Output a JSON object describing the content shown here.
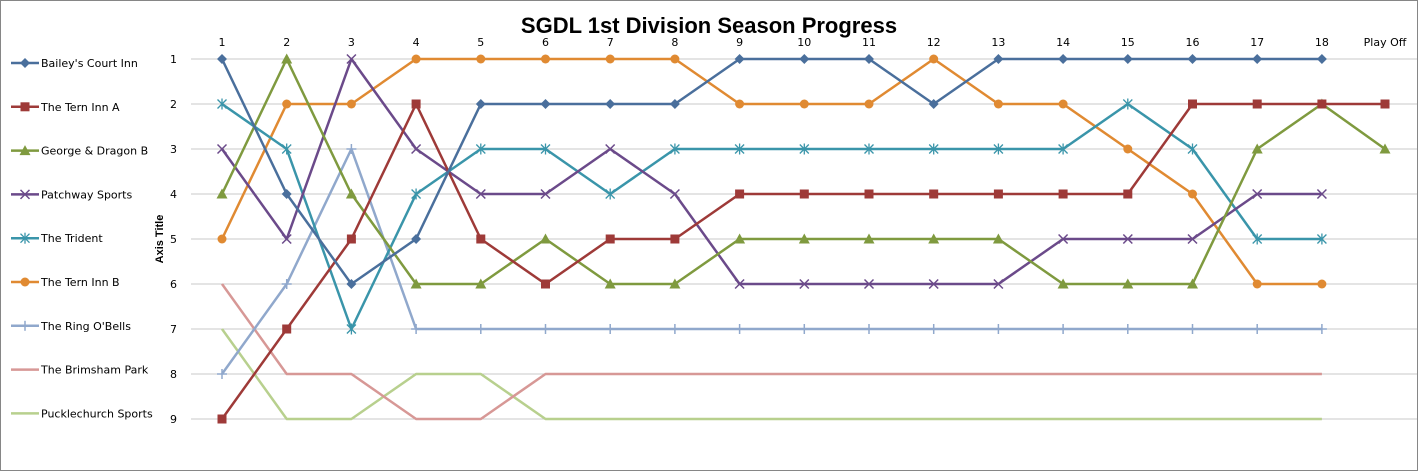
{
  "chart_data": {
    "type": "line",
    "title": "SGDL 1st Division Season Progress",
    "xlabel": "",
    "ylabel": "Axis Title",
    "x_axis_position": "top",
    "y_reversed": true,
    "ylim": [
      1,
      9
    ],
    "y_ticks": [
      "1",
      "2",
      "3",
      "4",
      "5",
      "6",
      "7",
      "8",
      "9"
    ],
    "categories": [
      "1",
      "2",
      "3",
      "4",
      "5",
      "6",
      "7",
      "8",
      "9",
      "10",
      "11",
      "12",
      "13",
      "14",
      "15",
      "16",
      "17",
      "18",
      "Play Off"
    ],
    "grid": "horizontal",
    "legend_position": "left",
    "series": [
      {
        "name": "Bailey's Court Inn",
        "color": "#4a6f9c",
        "marker": "diamond",
        "values": [
          1,
          4,
          6,
          5,
          2,
          2,
          2,
          2,
          1,
          1,
          1,
          2,
          1,
          1,
          1,
          1,
          1,
          1,
          null
        ]
      },
      {
        "name": "The Tern Inn A",
        "color": "#9e3a38",
        "marker": "square",
        "values": [
          9,
          7,
          5,
          2,
          5,
          6,
          5,
          5,
          4,
          4,
          4,
          4,
          4,
          4,
          4,
          2,
          2,
          2,
          2
        ]
      },
      {
        "name": "George & Dragon B",
        "color": "#7f9a3f",
        "marker": "triangle",
        "values": [
          4,
          1,
          4,
          6,
          6,
          5,
          6,
          6,
          5,
          5,
          5,
          5,
          5,
          6,
          6,
          6,
          3,
          2,
          3
        ]
      },
      {
        "name": "Patchway Sports",
        "color": "#6b4a8a",
        "marker": "x",
        "values": [
          3,
          5,
          1,
          3,
          4,
          4,
          3,
          4,
          6,
          6,
          6,
          6,
          6,
          5,
          5,
          5,
          4,
          4,
          null
        ]
      },
      {
        "name": "The Trident",
        "color": "#3a95aa",
        "marker": "star",
        "values": [
          2,
          3,
          7,
          4,
          3,
          3,
          4,
          3,
          3,
          3,
          3,
          3,
          3,
          3,
          2,
          3,
          5,
          5,
          null
        ]
      },
      {
        "name": "The Tern Inn B",
        "color": "#e08a32",
        "marker": "circle",
        "values": [
          5,
          2,
          2,
          1,
          1,
          1,
          1,
          1,
          2,
          2,
          2,
          1,
          2,
          2,
          3,
          4,
          6,
          6,
          null
        ]
      },
      {
        "name": "The Ring O'Bells",
        "color": "#90a8cc",
        "marker": "plus",
        "values": [
          8,
          6,
          3,
          7,
          7,
          7,
          7,
          7,
          7,
          7,
          7,
          7,
          7,
          7,
          7,
          7,
          7,
          7,
          null
        ]
      },
      {
        "name": "The Brimsham Park",
        "color": "#d79896",
        "marker": "none",
        "values": [
          6,
          8,
          8,
          9,
          9,
          8,
          8,
          8,
          8,
          8,
          8,
          8,
          8,
          8,
          8,
          8,
          8,
          8,
          null
        ]
      },
      {
        "name": "Pucklechurch Sports",
        "color": "#b8d08e",
        "marker": "none",
        "values": [
          7,
          9,
          9,
          8,
          8,
          9,
          9,
          9,
          9,
          9,
          9,
          9,
          9,
          9,
          9,
          9,
          9,
          9,
          null
        ]
      }
    ]
  }
}
